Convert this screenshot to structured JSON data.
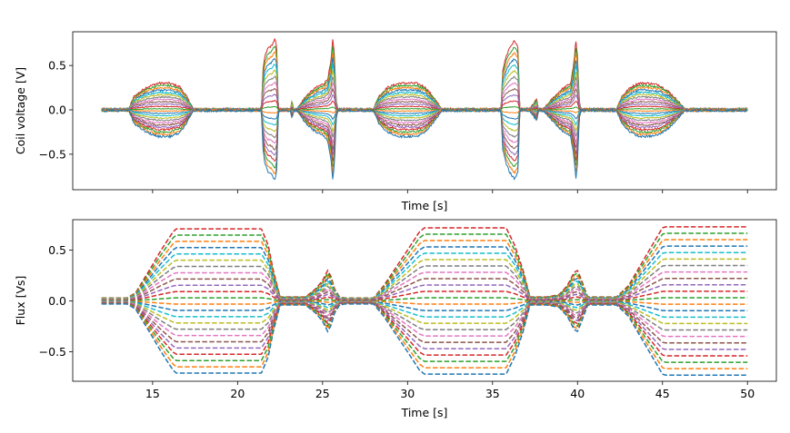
{
  "palette": [
    "#1f77b4",
    "#ff7f0e",
    "#2ca02c",
    "#d62728",
    "#9467bd",
    "#8c564b",
    "#e377c2",
    "#7f7f7f",
    "#bcbd22",
    "#17becf"
  ],
  "chart_data": [
    {
      "type": "line",
      "title": "",
      "xlabel": "Time [s]",
      "ylabel": "Coil voltage [V]",
      "xlim": [
        10.3,
        51.7
      ],
      "ylim": [
        -0.9,
        0.88
      ],
      "yticks": [
        -0.5,
        0.0,
        0.5
      ],
      "ytick_labels": [
        "−0.5",
        "0.0",
        "0.5"
      ],
      "xtick_labels_shown": false,
      "grid": false,
      "legend": "none",
      "line_style": "solid",
      "n_series": 24,
      "envelope": {
        "x": [
          12.0,
          13.6,
          13.9,
          14.6,
          15.3,
          16.0,
          16.6,
          17.0,
          17.4,
          21.4,
          21.5,
          21.6,
          21.8,
          22.0,
          22.2,
          22.3,
          22.4,
          23.1,
          23.2,
          23.3,
          23.5,
          24.0,
          24.6,
          25.1,
          25.3,
          25.5,
          25.6,
          25.7,
          25.8,
          25.9,
          26.0,
          28.0,
          28.3,
          28.8,
          29.5,
          30.5,
          31.0,
          31.5,
          32.0,
          32.3,
          35.5,
          35.6,
          35.8,
          36.0,
          36.3,
          36.5,
          36.6,
          37.2,
          37.6,
          37.7,
          38.0,
          38.5,
          39.0,
          39.6,
          39.8,
          39.9,
          40.0,
          40.1,
          40.2,
          40.5,
          42.3,
          42.6,
          43.1,
          43.6,
          44.2,
          44.8,
          45.4,
          46.0,
          46.3,
          50.0
        ],
        "amplitude": [
          0.01,
          0.01,
          0.15,
          0.25,
          0.3,
          0.3,
          0.26,
          0.15,
          0.01,
          0.01,
          0.45,
          0.6,
          0.7,
          0.72,
          0.8,
          0.7,
          0.01,
          0.01,
          0.1,
          0.01,
          0.01,
          0.15,
          0.25,
          0.3,
          0.35,
          0.55,
          0.8,
          0.6,
          0.1,
          0.01,
          0.01,
          0.01,
          0.15,
          0.25,
          0.3,
          0.3,
          0.26,
          0.15,
          0.01,
          0.01,
          0.01,
          0.45,
          0.6,
          0.7,
          0.78,
          0.7,
          0.01,
          0.01,
          0.12,
          0.01,
          0.01,
          0.12,
          0.22,
          0.3,
          0.55,
          0.78,
          0.6,
          0.1,
          0.01,
          0.01,
          0.01,
          0.15,
          0.25,
          0.3,
          0.3,
          0.28,
          0.2,
          0.08,
          0.01,
          0.01
        ]
      }
    },
    {
      "type": "line",
      "title": "",
      "xlabel": "Time [s]",
      "ylabel": "Flux [Vs]",
      "xlim": [
        10.3,
        51.7
      ],
      "ylim": [
        -0.79,
        0.8
      ],
      "xticks": [
        15,
        20,
        25,
        30,
        35,
        40,
        45,
        50
      ],
      "xtick_labels": [
        "15",
        "20",
        "25",
        "30",
        "35",
        "40",
        "45",
        "50"
      ],
      "yticks": [
        -0.5,
        0.0,
        0.5
      ],
      "ytick_labels": [
        "−0.5",
        "0.0",
        "0.5"
      ],
      "grid": false,
      "legend": "none",
      "line_style": "dashed",
      "n_series": 24,
      "envelope": {
        "x": [
          12.0,
          13.5,
          14.0,
          14.8,
          15.5,
          16.2,
          16.4,
          21.4,
          21.8,
          22.1,
          22.5,
          23.2,
          24.0,
          24.6,
          25.0,
          25.3,
          25.5,
          25.7,
          26.0,
          26.3,
          28.0,
          28.6,
          29.2,
          30.0,
          30.7,
          31.0,
          35.8,
          36.3,
          36.8,
          37.2,
          38.2,
          38.9,
          39.4,
          39.8,
          40.0,
          40.2,
          40.6,
          42.3,
          43.0,
          43.7,
          44.4,
          45.0,
          45.2,
          50.0
        ],
        "amplitude": [
          0.03,
          0.03,
          0.08,
          0.3,
          0.5,
          0.68,
          0.71,
          0.71,
          0.55,
          0.3,
          0.04,
          0.04,
          0.04,
          0.12,
          0.2,
          0.3,
          0.24,
          0.12,
          0.04,
          0.03,
          0.03,
          0.15,
          0.3,
          0.5,
          0.68,
          0.72,
          0.72,
          0.55,
          0.3,
          0.04,
          0.04,
          0.06,
          0.15,
          0.28,
          0.3,
          0.22,
          0.04,
          0.04,
          0.15,
          0.35,
          0.55,
          0.72,
          0.73,
          0.73
        ]
      }
    }
  ]
}
